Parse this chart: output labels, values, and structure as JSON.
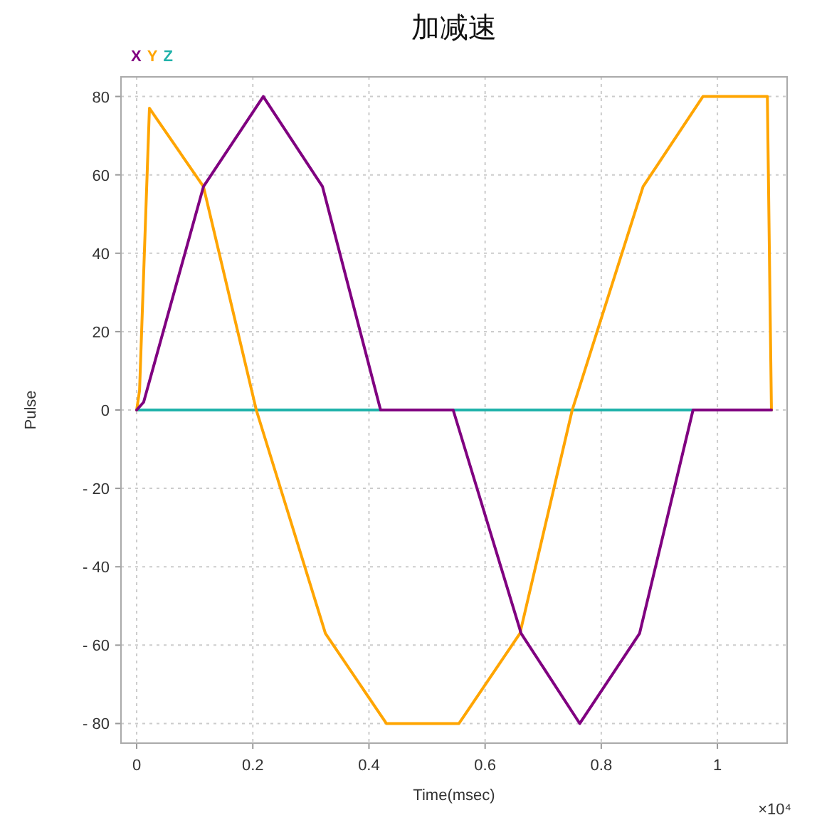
{
  "chart_data": {
    "type": "line",
    "title": "加减速",
    "xlabel": "Time(msec)",
    "ylabel": "Pulse",
    "annotations": [
      "×10⁴"
    ],
    "xlim": [
      -0.027,
      1.12
    ],
    "xticks": [
      0,
      0.2,
      0.4,
      0.6,
      0.8,
      1
    ],
    "ylim": [
      -85,
      85
    ],
    "yticks": [
      -80,
      -60,
      -40,
      -20,
      0,
      20,
      40,
      60,
      80
    ],
    "grid": true,
    "legend": "top left",
    "marker": "none",
    "line_style": "solid",
    "series": [
      {
        "name": "X",
        "color": "#800080",
        "x": [
          0,
          0.012,
          0.115,
          0.218,
          0.32,
          0.42,
          0.545,
          0.662,
          0.763,
          0.866,
          0.958,
          1.093
        ],
        "values": [
          0,
          2,
          57,
          80,
          57,
          0,
          0,
          -57,
          -80,
          -57,
          0,
          0
        ]
      },
      {
        "name": "Y",
        "color": "#ffa500",
        "x": [
          0,
          0.005,
          0.022,
          0.115,
          0.206,
          0.325,
          0.43,
          0.555,
          0.66,
          0.75,
          0.872,
          0.975,
          1.086,
          1.093
        ],
        "values": [
          0,
          5,
          77,
          57,
          0,
          -57,
          -80,
          -80,
          -57,
          0,
          57,
          80,
          80,
          0
        ]
      },
      {
        "name": "Z",
        "color": "#20b2aa",
        "x": [
          0,
          1.093
        ],
        "values": [
          0,
          0
        ]
      }
    ]
  }
}
